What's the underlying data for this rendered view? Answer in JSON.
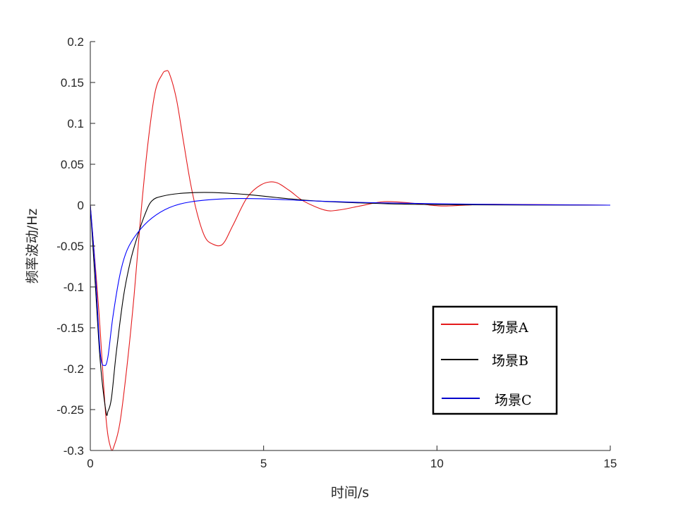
{
  "chart_data": {
    "type": "line",
    "title": "",
    "xlabel": "时间/s",
    "ylabel": "频率波动/Hz",
    "xlim": [
      0,
      15
    ],
    "ylim": [
      -0.3,
      0.2
    ],
    "xticks": [
      0,
      5,
      10,
      15
    ],
    "xtick_labels": [
      "0",
      "5",
      "10",
      "15"
    ],
    "yticks": [
      -0.3,
      -0.25,
      -0.2,
      -0.15,
      -0.1,
      -0.05,
      0,
      0.05,
      0.1,
      0.15,
      0.2
    ],
    "ytick_labels": [
      "-0.3",
      "-0.25",
      "-0.2",
      "-0.15",
      "-0.1",
      "-0.05",
      "0",
      "0.05",
      "0.1",
      "0.15",
      "0.2"
    ],
    "grid": false,
    "legend_position": "bottom-right",
    "series": [
      {
        "name": "场景A",
        "color": "#e41a1c",
        "x": [
          0,
          0.244,
          0.448,
          0.59,
          0.69,
          0.855,
          1.058,
          1.262,
          1.465,
          1.669,
          1.873,
          2.076,
          2.178,
          2.28,
          2.483,
          2.687,
          2.89,
          3.094,
          3.298,
          3.5,
          3.81,
          4.11,
          4.52,
          4.93,
          5.33,
          5.74,
          6.15,
          6.76,
          7.16,
          7.78,
          8.39,
          8.79,
          9.4,
          10.12,
          10.83,
          11.64,
          15
        ],
        "y": [
          0,
          -0.128,
          -0.258,
          -0.297,
          -0.294,
          -0.266,
          -0.197,
          -0.111,
          -0.008,
          0.078,
          0.139,
          0.16,
          0.164,
          0.161,
          0.13,
          0.078,
          0.027,
          -0.012,
          -0.038,
          -0.047,
          -0.048,
          -0.025,
          0.009,
          0.025,
          0.028,
          0.018,
          0.005,
          -0.006,
          -0.006,
          -0.001,
          0.004,
          0.004,
          0.002,
          -0.001,
          0,
          0.001,
          0
        ]
      },
      {
        "name": "场景B",
        "color": "#000000",
        "x": [
          0,
          0.14,
          0.285,
          0.45,
          0.51,
          0.61,
          0.75,
          0.96,
          1.16,
          1.36,
          1.57,
          1.77,
          2.08,
          2.69,
          3.5,
          4.52,
          5.54,
          6.55,
          8.59,
          10.6,
          15
        ],
        "y": [
          0,
          -0.094,
          -0.19,
          -0.252,
          -0.252,
          -0.236,
          -0.18,
          -0.111,
          -0.068,
          -0.038,
          -0.012,
          0.005,
          0.011,
          0.0147,
          0.0155,
          0.013,
          0.0086,
          0.005,
          0.0017,
          0.0005,
          0
        ]
      },
      {
        "name": "场景C",
        "color": "#0000ff",
        "x": [
          0,
          0.14,
          0.285,
          0.41,
          0.51,
          0.65,
          0.855,
          1.06,
          1.36,
          1.77,
          2.28,
          2.89,
          3.91,
          4.93,
          6.55,
          8.59,
          11.64,
          15
        ],
        "y": [
          0,
          -0.077,
          -0.18,
          -0.196,
          -0.185,
          -0.137,
          -0.085,
          -0.055,
          -0.034,
          -0.016,
          -0.003,
          0.004,
          0.0078,
          0.0078,
          0.005,
          0.0026,
          0.0009,
          0
        ]
      }
    ]
  }
}
